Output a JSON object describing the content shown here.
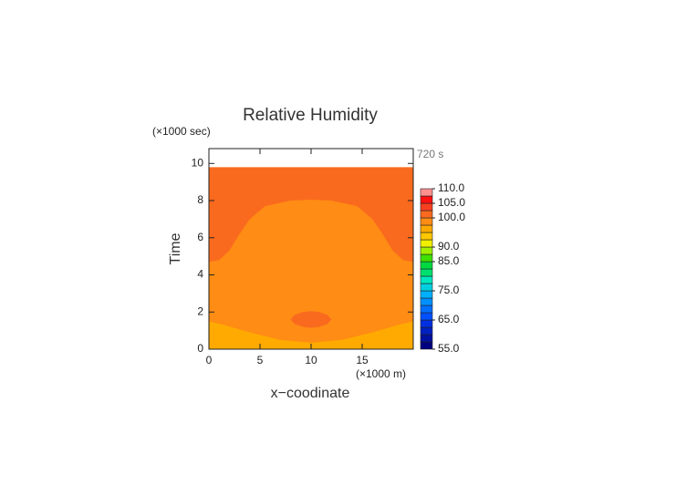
{
  "chart_data": {
    "type": "contour",
    "title": "Relative Humidity",
    "xlabel": "x−coodinate",
    "ylabel": "Time",
    "xunit": "(×1000 m)",
    "yunit": "(×1000 sec)",
    "annotation": "720 s",
    "xlim": [
      0,
      20
    ],
    "ylim": [
      0,
      10.8
    ],
    "xticks": [
      0,
      5,
      10,
      15
    ],
    "yticks": [
      0,
      2,
      4,
      6,
      8,
      10
    ],
    "regions": [
      {
        "level": 100,
        "x": [
          0,
          20,
          20,
          0
        ],
        "y": [
          0,
          0,
          9.8,
          9.8
        ]
      },
      {
        "level": 97.5,
        "x": [
          0,
          20,
          20,
          19,
          18,
          17,
          16,
          14.5,
          12,
          10,
          8,
          5.5,
          4,
          3,
          2,
          1,
          0
        ],
        "y": [
          0,
          0,
          4.7,
          4.8,
          5.3,
          6.2,
          7.0,
          7.7,
          8.0,
          8.05,
          8.0,
          7.7,
          7.0,
          6.2,
          5.3,
          4.8,
          4.7
        ]
      },
      {
        "level": 95,
        "x": [
          0,
          20,
          20,
          18.5,
          16,
          13,
          10,
          7,
          4,
          1.5,
          0
        ],
        "y": [
          0,
          0,
          1.5,
          1.3,
          0.9,
          0.5,
          0.35,
          0.5,
          0.9,
          1.3,
          1.5
        ]
      },
      {
        "level": 100,
        "x": [
          8,
          8.4,
          9.2,
          10,
          10.8,
          11.6,
          12,
          11.6,
          10.8,
          10,
          9.2,
          8.4
        ],
        "y": [
          1.6,
          1.85,
          2.0,
          2.05,
          2.0,
          1.85,
          1.6,
          1.35,
          1.2,
          1.15,
          1.2,
          1.35
        ]
      }
    ],
    "colorbar": {
      "levels": [
        55,
        57.5,
        60,
        62.5,
        65,
        67.5,
        70,
        72.5,
        75,
        77.5,
        80,
        82.5,
        85,
        87.5,
        90,
        92.5,
        95,
        97.5,
        100,
        102.5,
        105,
        107.5,
        110
      ],
      "colors": [
        "#000080",
        "#0010a0",
        "#0020c0",
        "#0030e0",
        "#0050ff",
        "#0070ff",
        "#0090ff",
        "#00b0ff",
        "#00d0e0",
        "#00e8c0",
        "#00e070",
        "#00d840",
        "#40e000",
        "#a0f000",
        "#f0f000",
        "#ffc800",
        "#ffaa00",
        "#ff8c14",
        "#f96a1e",
        "#f84020",
        "#ff1010",
        "#ff9090"
      ],
      "ticks": [
        {
          "value": 55,
          "label": "55.0"
        },
        {
          "value": 65,
          "label": "65.0"
        },
        {
          "value": 75,
          "label": "75.0"
        },
        {
          "value": 85,
          "label": "85.0"
        },
        {
          "value": 90,
          "label": "90.0"
        },
        {
          "value": 100,
          "label": "100.0"
        },
        {
          "value": 105,
          "label": "105.0"
        },
        {
          "value": 110,
          "label": "110.0"
        }
      ]
    }
  }
}
